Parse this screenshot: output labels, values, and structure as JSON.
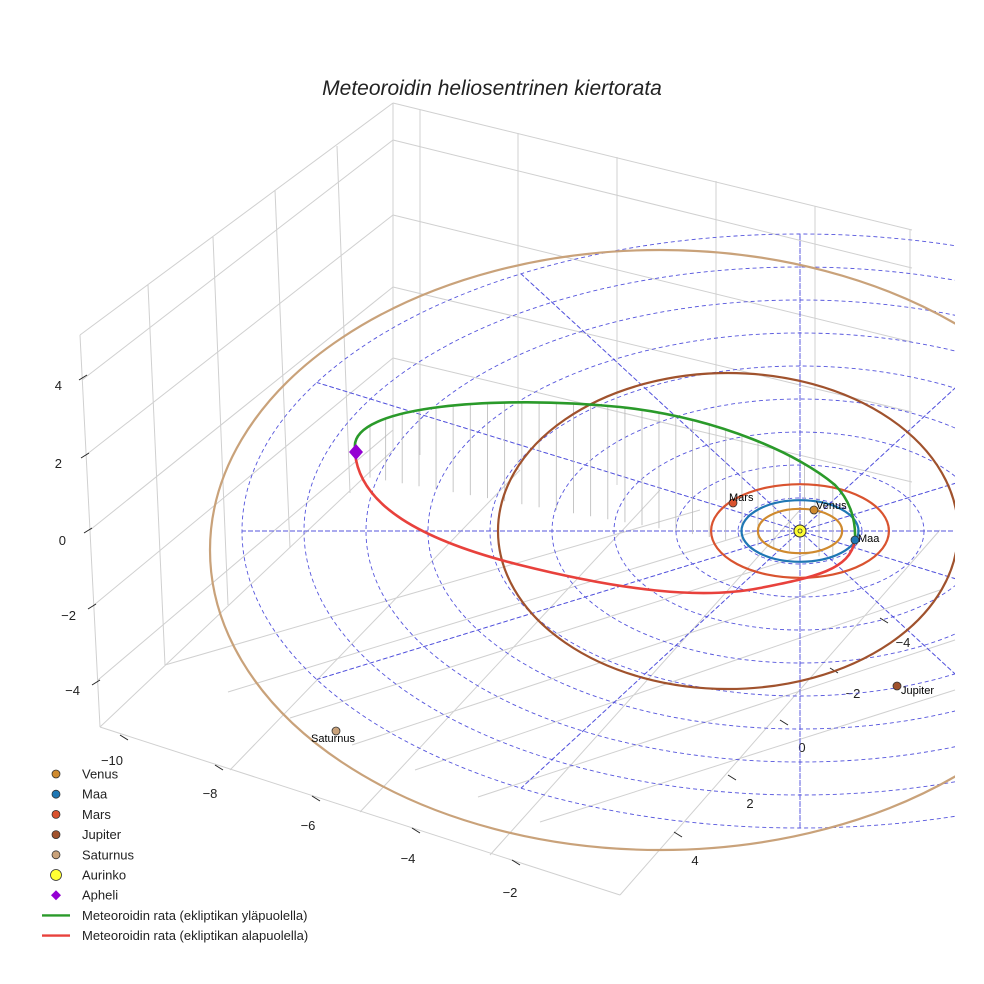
{
  "chart_data": {
    "type": "3d-line",
    "title": "Meteoroidin heliosentrinen kiertorata",
    "axes": {
      "x_ticks": [
        "−10",
        "−8",
        "−6",
        "−4",
        "−2"
      ],
      "y_ticks": [
        "−4",
        "−2",
        "0",
        "2",
        "4"
      ],
      "z_ticks": [
        "4",
        "2",
        "0",
        "−2",
        "−4"
      ]
    },
    "planets": [
      {
        "name": "Venus",
        "orbit_radius_au": 0.72,
        "color": "#cf8a2e"
      },
      {
        "name": "Maa",
        "orbit_radius_au": 1.0,
        "color": "#1f77b4"
      },
      {
        "name": "Mars",
        "orbit_radius_au": 1.52,
        "color": "#d9532f"
      },
      {
        "name": "Jupiter",
        "orbit_radius_au": 5.2,
        "color": "#a0522d"
      },
      {
        "name": "Saturnus",
        "orbit_radius_au": 9.54,
        "color": "#c9a27a"
      }
    ],
    "sun": {
      "name": "Aurinko",
      "color": "#ffff33"
    },
    "aphelion": {
      "name": "Apheli",
      "color": "#9400d3"
    },
    "orbit_segments": [
      {
        "name": "Meteoroidin rata (ekliptikan yläpuolella)",
        "color": "#2a9a2a"
      },
      {
        "name": "Meteoroidin rata (ekliptikan alapuolella)",
        "color": "#e8413c"
      }
    ],
    "ecliptic_grid": {
      "rings": 9,
      "color": "#5555dd"
    }
  },
  "legend": [
    {
      "label": "Venus",
      "marker": "circle",
      "color": "#cf8a2e"
    },
    {
      "label": "Maa",
      "marker": "circle",
      "color": "#1f77b4"
    },
    {
      "label": "Mars",
      "marker": "circle",
      "color": "#d9532f"
    },
    {
      "label": "Jupiter",
      "marker": "circle",
      "color": "#a0522d"
    },
    {
      "label": "Saturnus",
      "marker": "circle",
      "color": "#c9a27a"
    },
    {
      "label": "Aurinko",
      "marker": "bigcircle",
      "color": "#ffff33"
    },
    {
      "label": "Apheli",
      "marker": "diamond",
      "color": "#9400d3"
    },
    {
      "label": "Meteoroidin rata (ekliptikan yläpuolella)",
      "marker": "line",
      "color": "#2a9a2a"
    },
    {
      "label": "Meteoroidin rata (ekliptikan alapuolella)",
      "marker": "line",
      "color": "#e8413c"
    }
  ]
}
